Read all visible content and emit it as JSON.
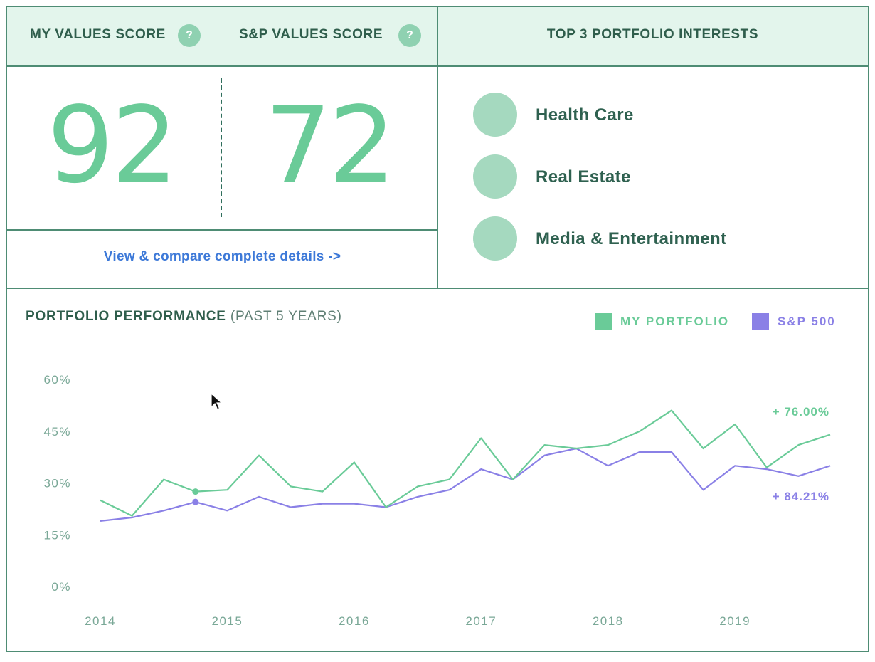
{
  "scores": {
    "my_label": "MY VALUES SCORE",
    "sp_label": "S&P VALUES SCORE",
    "help_glyph": "?",
    "my_value": "92",
    "sp_value": "72",
    "details_link": "View & compare complete details ->"
  },
  "interests": {
    "title": "TOP 3 PORTFOLIO INTERESTS",
    "items": [
      "Health Care",
      "Real Estate",
      "Media & Entertainment"
    ]
  },
  "performance": {
    "title": "PORTFOLIO PERFORMANCE",
    "subtitle": "(PAST 5 YEARS)",
    "legend_my": "MY PORTFOLIO",
    "legend_sp": "S&P 500"
  },
  "colors": {
    "accent_green": "#6acb98",
    "accent_purple": "#8a80e6",
    "header_bg": "#e3f5ec",
    "border": "#4e8c74",
    "link_blue": "#3d79d8"
  },
  "icons": [
    "help-icon",
    "cursor-icon"
  ],
  "chart_data": {
    "type": "line",
    "title": "PORTFOLIO PERFORMANCE (PAST 5 YEARS)",
    "xlabel": "",
    "ylabel": "",
    "ylim": [
      0,
      60
    ],
    "y_ticks": [
      "60%",
      "45%",
      "30%",
      "15%",
      "0%"
    ],
    "y_tick_values": [
      60,
      45,
      30,
      15,
      0
    ],
    "x_ticks": [
      "2014",
      "2015",
      "2016",
      "2017",
      "2018",
      "2019"
    ],
    "x_tick_values": [
      2014,
      2015,
      2016,
      2017,
      2018,
      2019
    ],
    "xlim": [
      2014,
      2019.75
    ],
    "grid": false,
    "legend": "top-right",
    "x": [
      2014,
      2014.25,
      2014.5,
      2014.75,
      2015,
      2015.25,
      2015.5,
      2015.75,
      2016,
      2016.25,
      2016.5,
      2016.75,
      2017,
      2017.25,
      2017.5,
      2017.75,
      2018,
      2018.25,
      2018.5,
      2018.75,
      2019,
      2019.25,
      2019.5,
      2019.75
    ],
    "series": [
      {
        "name": "MY PORTFOLIO",
        "color": "#6acb98",
        "end_label": "+ 76.00%",
        "marker_index": 3,
        "values": [
          25,
          20.5,
          31,
          27.5,
          28,
          38,
          29,
          27.5,
          36,
          23,
          29,
          31,
          43,
          31,
          41,
          40,
          41,
          45,
          51,
          40,
          47,
          34.5,
          41,
          44
        ]
      },
      {
        "name": "S&P 500",
        "color": "#8a80e6",
        "end_label": "+ 84.21%",
        "marker_index": 3,
        "values": [
          19,
          20,
          22,
          24.5,
          22,
          26,
          23,
          24,
          24,
          23,
          26,
          28,
          34,
          31,
          38,
          40,
          35,
          39,
          39,
          28,
          35,
          34,
          32,
          35
        ]
      }
    ]
  }
}
